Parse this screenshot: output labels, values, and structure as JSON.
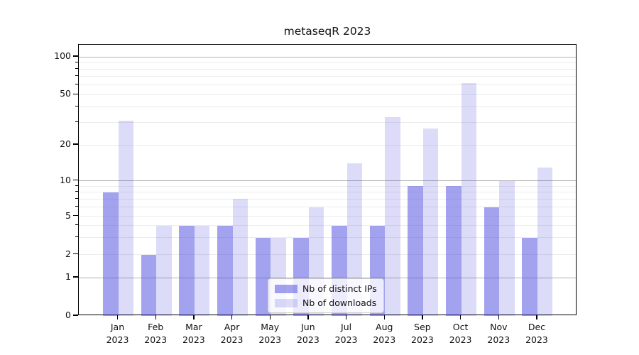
{
  "chart_data": {
    "type": "bar",
    "title": "metaseqR 2023",
    "categories": [
      "Jan 2023",
      "Feb 2023",
      "Mar 2023",
      "Apr 2023",
      "May 2023",
      "Jun 2023",
      "Jul 2023",
      "Aug 2023",
      "Sep 2023",
      "Oct 2023",
      "Nov 2023",
      "Dec 2023"
    ],
    "series": [
      {
        "name": "Nb of distinct IPs",
        "color": "rgba(69,69,221,0.50)",
        "values": [
          8,
          2,
          4,
          4,
          3,
          3,
          4,
          4,
          9,
          9,
          6,
          3
        ]
      },
      {
        "name": "Nb of downloads",
        "color": "rgba(69,69,221,0.19)",
        "values": [
          31,
          4,
          4,
          7,
          3,
          6,
          14,
          33,
          27,
          62,
          10,
          13
        ]
      }
    ],
    "yaxis": {
      "ticks": [
        0,
        1,
        2,
        5,
        10,
        20,
        50,
        100
      ],
      "scale": "log-like (0 linear segment, log above 1)",
      "range": [
        0,
        125
      ]
    },
    "grid": {
      "on": true,
      "major_values": [
        1,
        10,
        100
      ],
      "minor_values": [
        2,
        3,
        4,
        5,
        6,
        7,
        8,
        9,
        20,
        30,
        40,
        50,
        60,
        70,
        80,
        90
      ],
      "major_color": "#b2b2b2",
      "minor_color": "#ececec"
    },
    "legend": {
      "position": "lower-center"
    }
  },
  "colors": {
    "bar_base": "#4545dd",
    "axis": "#000000",
    "background": "#ffffff",
    "legend_border": "#cccccc"
  }
}
